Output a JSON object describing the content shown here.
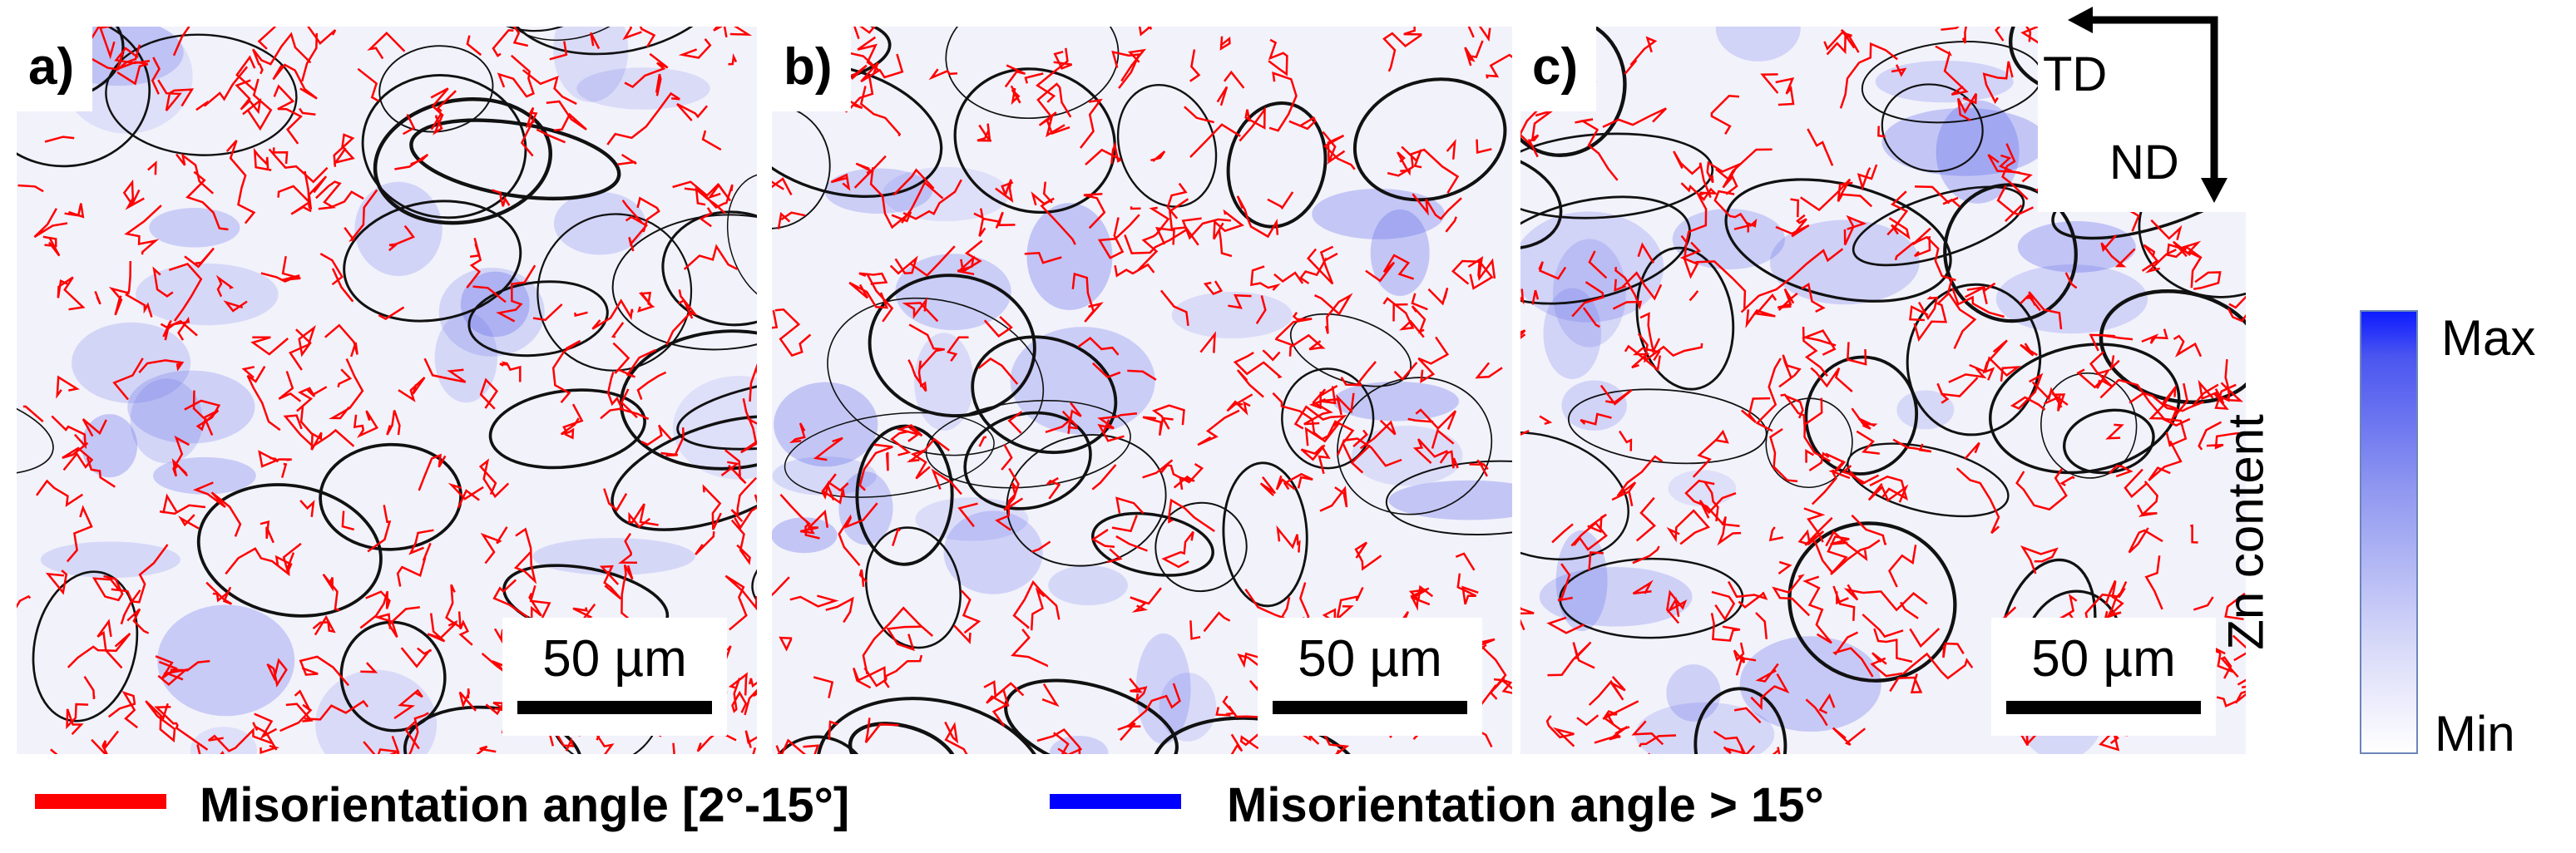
{
  "panels": [
    {
      "label": "a)",
      "scale": "50 µm"
    },
    {
      "label": "b)",
      "scale": "50 µm"
    },
    {
      "label": "c)",
      "scale": "50 µm"
    }
  ],
  "directions": {
    "td": "TD",
    "nd": "ND"
  },
  "colorbar": {
    "title": "Zn content",
    "max": "Max",
    "min": "Min",
    "max_color": "#0d1bff",
    "min_color": "#ffffff"
  },
  "legend": [
    {
      "text": "Misorientation angle [2°-15°]",
      "color": "#ff0000"
    },
    {
      "text": "Misorientation angle > 15°",
      "color": "#0000ff"
    }
  ]
}
